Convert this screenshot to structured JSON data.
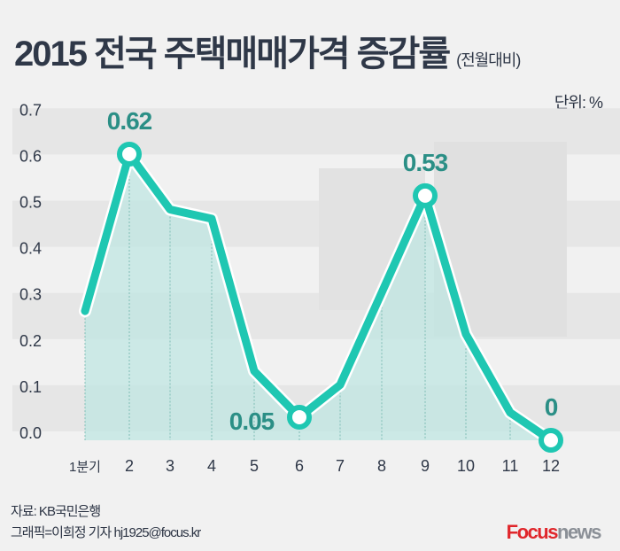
{
  "chart_data": {
    "type": "line",
    "title": "2015 전국 주택매매가격 증감률",
    "subtitle": "(전월대비)",
    "unit_label": "단위: %",
    "categories": [
      "1분기",
      "2",
      "3",
      "4",
      "5",
      "6",
      "7",
      "8",
      "9",
      "10",
      "11",
      "12"
    ],
    "values": [
      0.28,
      0.62,
      0.5,
      0.48,
      0.15,
      0.05,
      0.12,
      0.32,
      0.53,
      0.23,
      0.06,
      0
    ],
    "data_labels": [
      {
        "index": 1,
        "text": "0.62"
      },
      {
        "index": 5,
        "text": "0.05"
      },
      {
        "index": 8,
        "text": "0.53"
      },
      {
        "index": 11,
        "text": "0"
      }
    ],
    "y_ticks": [
      "0.0",
      "0.1",
      "0.2",
      "0.3",
      "0.4",
      "0.5",
      "0.6",
      "0.7"
    ],
    "ylim": [
      0,
      0.7
    ],
    "grid": "alternating bands",
    "colors": {
      "line": "#1fc7b2",
      "label": "#2b8f86",
      "fill": "#bfe6e1"
    }
  },
  "footer": {
    "source": "자료: KB국민은행",
    "credit": "그래픽=이희정 기자 hj1925@focus.kr"
  },
  "logo": {
    "focus": "Focus",
    "news": "news"
  }
}
